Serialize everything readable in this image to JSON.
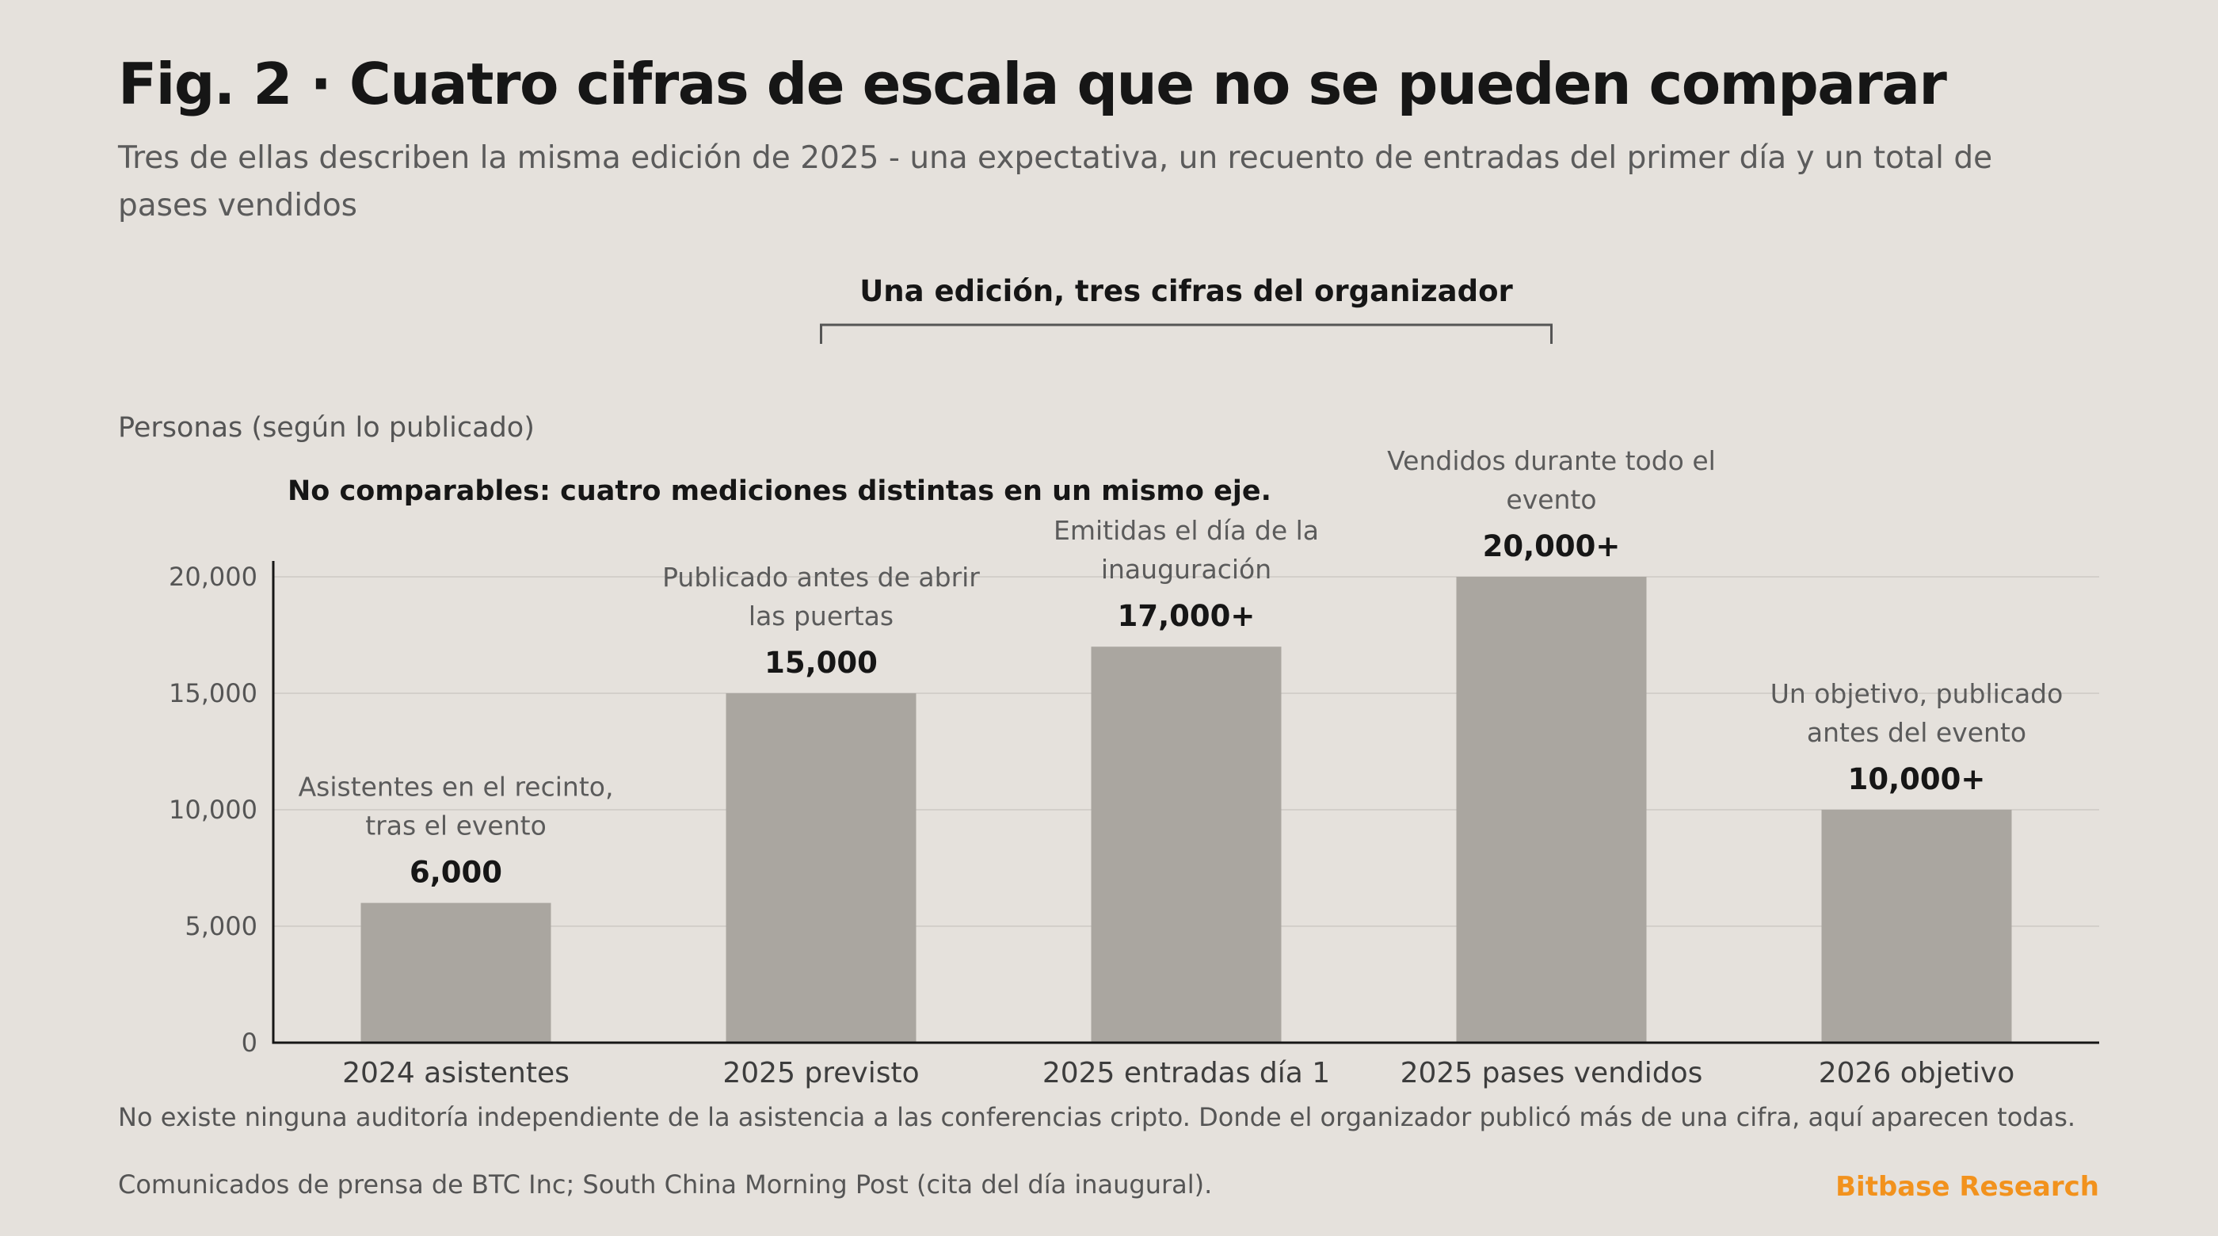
{
  "header": {
    "title": "Fig. 2 · Cuatro cifras de escala que no se pueden comparar",
    "subtitle": "Tres de ellas describen la misma edición de 2025 - una expectativa, un recuento de entradas del primer día y un total de pases vendidos"
  },
  "chart_note": "No comparables: cuatro mediciones distintas en un mismo eje.",
  "footer": {
    "footnote": "No existe ninguna auditoría independiente de la asistencia a las conferencias cripto. Donde el organizador publicó más de una cifra, aquí aparecen todas.",
    "source": "Comunicados de prensa de BTC Inc; South China Morning Post (cita del día inaugural).",
    "brand": "Bitbase Research"
  },
  "colors": {
    "bar": "#aaa6a0",
    "axis": "#161616",
    "grid": "#d3cfca",
    "bracket": "#555555",
    "brand": "#f2921d",
    "background": "#e5e1dc"
  },
  "chart_data": {
    "type": "bar",
    "ylabel": "Personas (según lo publicado)",
    "xlabel": "",
    "ylim": [
      0,
      20000
    ],
    "yticks": [
      0,
      5000,
      10000,
      15000,
      20000
    ],
    "ytick_labels": [
      "0",
      "5,000",
      "10,000",
      "15,000",
      "20,000"
    ],
    "grid": true,
    "categories": [
      "2024 asistentes",
      "2025 previsto",
      "2025 entradas día 1",
      "2025 pases vendidos",
      "2026 objetivo"
    ],
    "values": [
      6000,
      15000,
      17000,
      20000,
      10000
    ],
    "value_labels": [
      "6,000",
      "15,000",
      "17,000+",
      "20,000+",
      "10,000+"
    ],
    "annotations": [
      [
        "Asistentes en el recinto,",
        "tras el evento"
      ],
      [
        "Publicado antes de abrir",
        "las puertas"
      ],
      [
        "Emitidas el día de la",
        "inauguración"
      ],
      [
        "Vendidos durante todo el",
        "evento"
      ],
      [
        "Un objetivo, publicado",
        "antes del evento"
      ]
    ],
    "bracket": {
      "label": "Una edición, tres cifras del organizador",
      "from_category": 1,
      "to_category": 3
    }
  }
}
